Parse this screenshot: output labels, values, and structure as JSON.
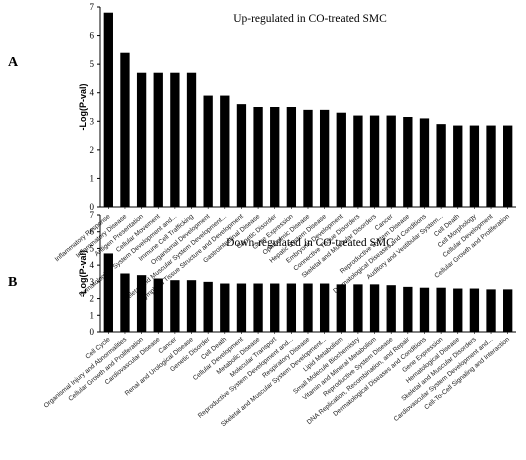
{
  "chart_data": [
    {
      "type": "bar",
      "panel_label": "A",
      "title": "Up-regulated  in CO-treated SMC",
      "ylabel": "-Log(P-val)",
      "ylim": [
        0,
        7
      ],
      "yticks": [
        "0",
        "1",
        "2",
        "3",
        "4",
        "5",
        "6",
        "7"
      ],
      "grid": false,
      "bar_color": "#000000",
      "categories": [
        "Inflammatory Response",
        "Inflammatory Disease",
        "Antigen Presentation",
        "Cellular Movement",
        "Hematological System Development and...",
        "Immune Cell Trafficking",
        "Organismal Development",
        "Skeletal and Muscular System Development...",
        "Lymphoid Tissue Structure and Development",
        "Gastrointestinal Disease",
        "Genetic Disorder",
        "Gene Expression",
        "Ophthalmic Disease",
        "Hepatic System Disease",
        "Embryonic Development",
        "Connective Tissue Disorders",
        "Skeletal and Muscular Disorders",
        "Cancer",
        "Reproductive System Disease",
        "Dermatological Diseases and Conditions",
        "Auditory and Vestibular System...",
        "Cell Death",
        "Cell Morphology",
        "Cellular Development",
        "Cellular Growth and Proliferation"
      ],
      "values": [
        6.8,
        5.4,
        4.7,
        4.7,
        4.7,
        4.7,
        3.9,
        3.9,
        3.6,
        3.5,
        3.5,
        3.5,
        3.4,
        3.4,
        3.3,
        3.2,
        3.2,
        3.2,
        3.15,
        3.1,
        2.9,
        2.85,
        2.85,
        2.85,
        2.85
      ]
    },
    {
      "type": "bar",
      "panel_label": "B",
      "title": "Down-regulated  in CO-treated SMC",
      "ylabel": "-Log(P-val)",
      "ylim": [
        0,
        7
      ],
      "yticks": [
        "0",
        "1",
        "2",
        "3",
        "4",
        "5",
        "6",
        "7"
      ],
      "grid": false,
      "bar_color": "#000000",
      "categories": [
        "Cell Cycle",
        "Organismal Injury and Abnormalities",
        "Cellular Growth and Proliferation",
        "Cardiovascular Disease",
        "Cancer",
        "Renal and Urological Disease",
        "Genetic Disorder",
        "Cell Death",
        "Cellular Development",
        "Metabolic Disease",
        "Molecular Transport",
        "Reproductive System Development and...",
        "Respiratory Disease",
        "Skeletal and Muscular System Development...",
        "Lipid Metabolism",
        "Small Molecule Biochemistry",
        "Vitamin and Mineral Metabolism",
        "Reproductive System Disease",
        "DNA Replication, Recombination, and Repair",
        "Dermatological Diseases and Conditions",
        "Gene Expression",
        "Hematological Disease",
        "Skeletal and Muscular Disorders",
        "Cardiovascular System Development and...",
        "Cell-To-Cell Signaling and Interaction"
      ],
      "values": [
        4.7,
        3.5,
        3.4,
        3.2,
        3.1,
        3.1,
        3.0,
        2.9,
        2.9,
        2.9,
        2.9,
        2.9,
        2.9,
        2.9,
        2.85,
        2.85,
        2.85,
        2.8,
        2.7,
        2.65,
        2.65,
        2.6,
        2.6,
        2.55,
        2.55
      ]
    }
  ]
}
